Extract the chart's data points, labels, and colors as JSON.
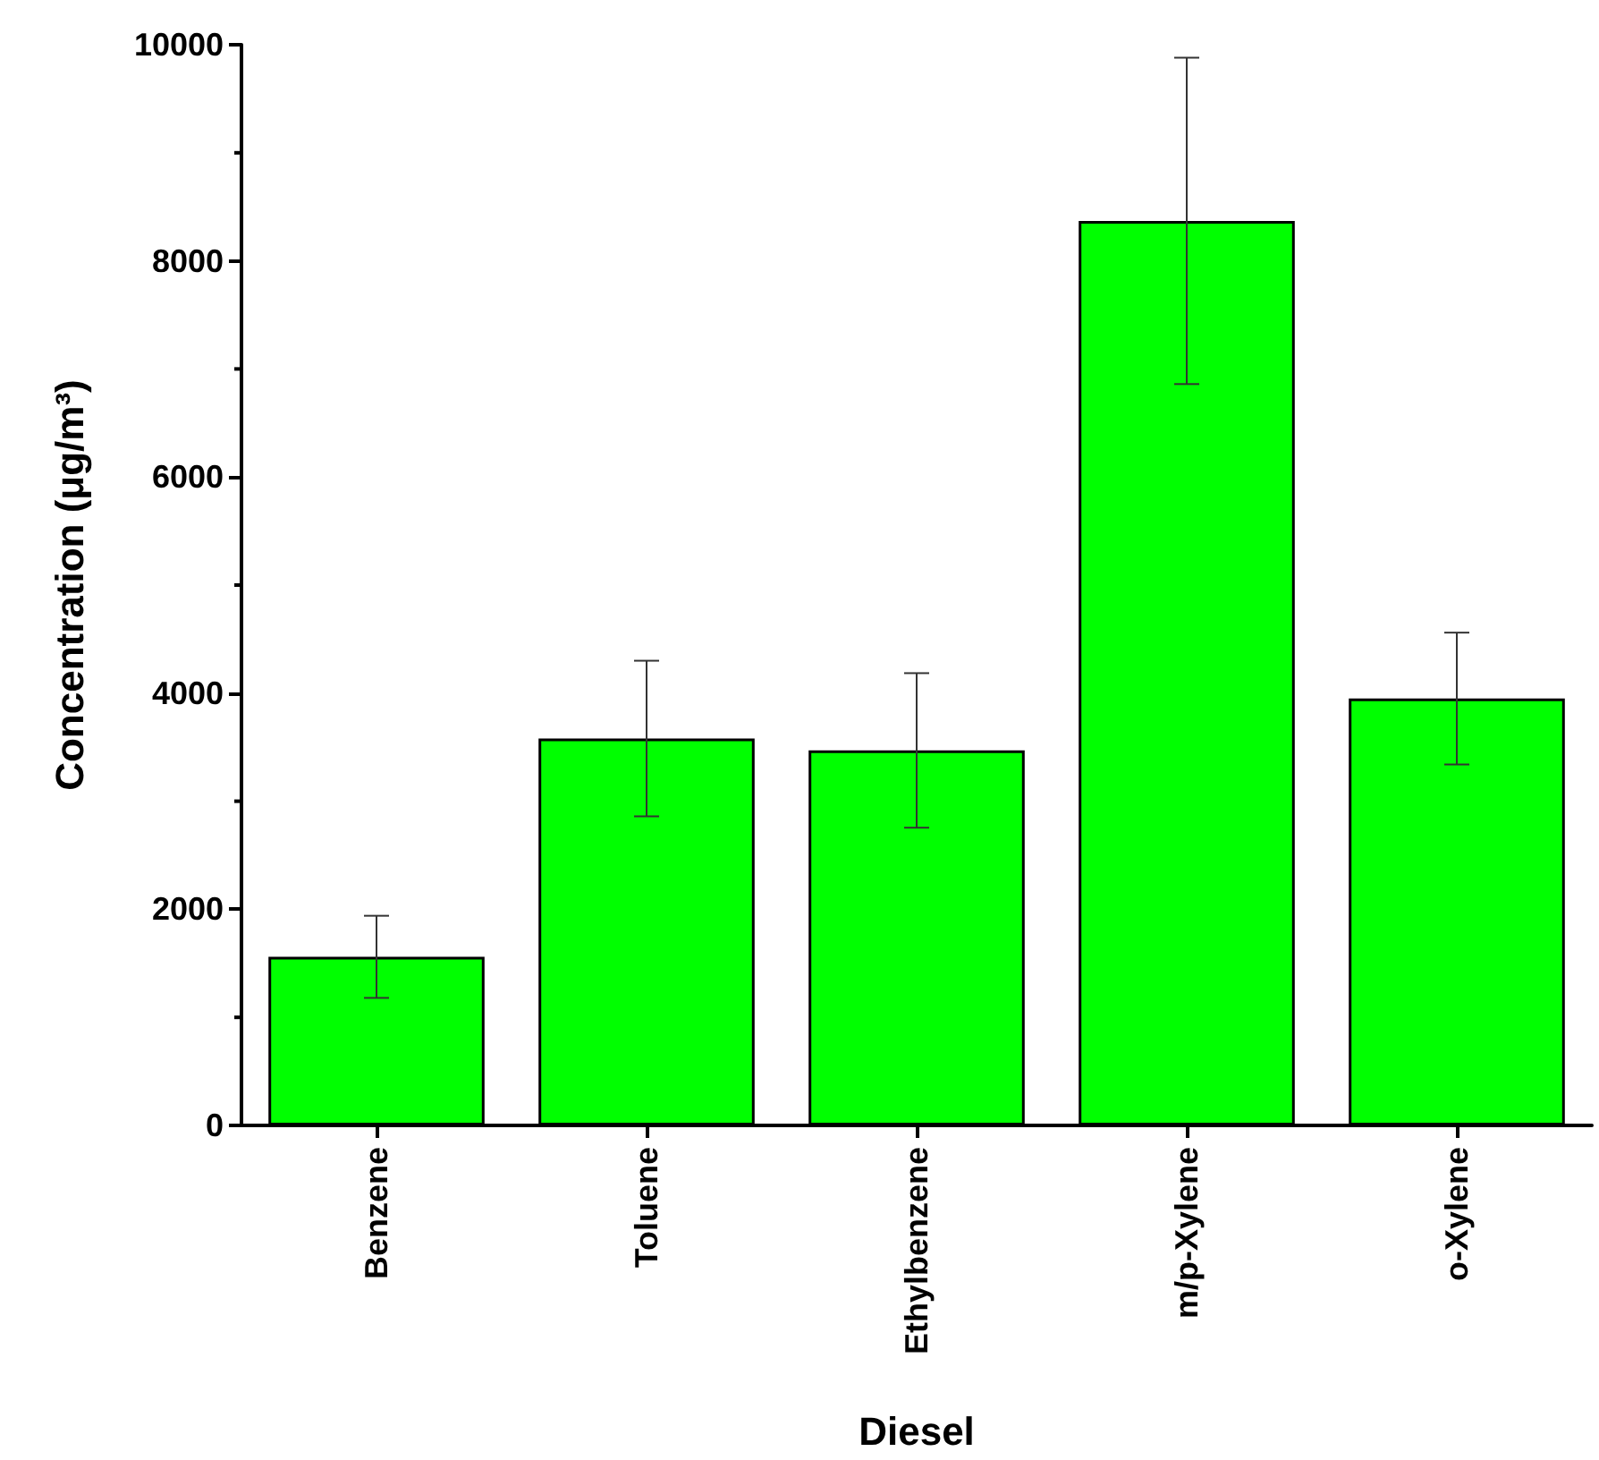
{
  "chart_data": {
    "type": "bar",
    "xlabel": "Diesel",
    "ylabel": "Concentration (μg/m³)",
    "categories": [
      "Benzene",
      "Toluene",
      "Ethylbenzene",
      "m/p-Xylene",
      "o-Xylene"
    ],
    "values": [
      1560,
      3580,
      3470,
      8370,
      3950
    ],
    "errors": [
      380,
      720,
      715,
      1510,
      610
    ],
    "color": "#00ff00",
    "ylim": [
      0,
      10000
    ],
    "yticks": [
      0,
      2000,
      4000,
      6000,
      8000,
      10000
    ],
    "grid": false
  }
}
